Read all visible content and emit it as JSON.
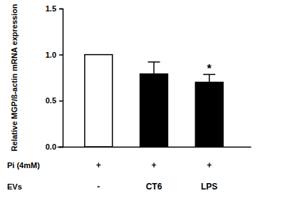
{
  "chart_data": {
    "type": "bar",
    "y_label": "Relative MGP/ß-actin mRNA expression",
    "categories": [
      "-",
      "CT6",
      "LPS"
    ],
    "category_row_label": "EVs",
    "extra_rows": [
      {
        "label": "Pi (4mM)",
        "values": [
          "+",
          "+",
          "+"
        ]
      }
    ],
    "values": [
      1.0,
      0.79,
      0.7
    ],
    "errors": [
      null,
      0.13,
      0.085
    ],
    "colors": [
      "#ffffff",
      "#000000",
      "#000000"
    ],
    "annotations": [
      {
        "text": "*",
        "category": "LPS"
      }
    ],
    "ylim": [
      0,
      1.5
    ],
    "yticks": [
      {
        "value": 0,
        "label": "0.0"
      },
      0.5,
      {
        "value": 1,
        "label": "1.0"
      },
      1.5
    ],
    "grid": false
  }
}
